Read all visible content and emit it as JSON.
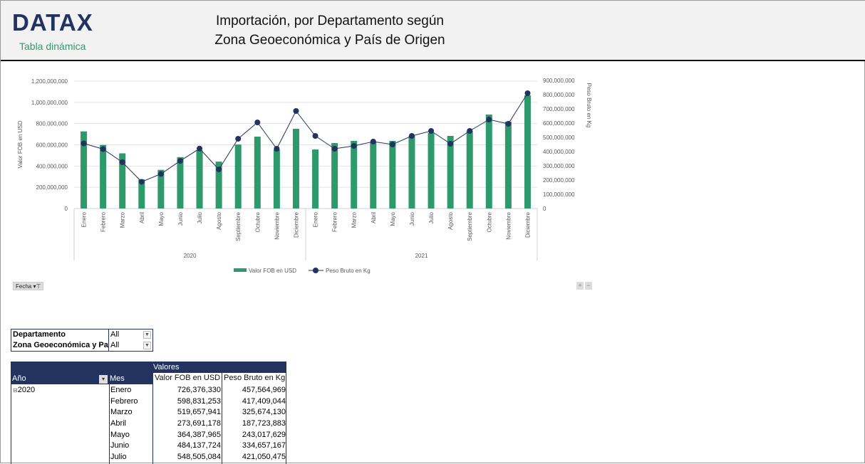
{
  "header": {
    "logo": "DATAX",
    "subtitle": "Tabla dinámica",
    "title_line1": "Importación, por Departamento según",
    "title_line2": "Zona Geoeconómica y País de Origen"
  },
  "chart_data": {
    "type": "bar+line",
    "categories": [
      "Enero",
      "Febrero",
      "Marzo",
      "Abril",
      "Mayo",
      "Junio",
      "Julio",
      "Agosto",
      "Septiembre",
      "Octubre",
      "Noviembre",
      "Diciembre",
      "Enero",
      "Febrero",
      "Marzo",
      "Abril",
      "Mayo",
      "Junio",
      "Julio",
      "Agosto",
      "Septiembre",
      "Octubre",
      "Noviembre",
      "Diciembre"
    ],
    "groups": [
      "2020",
      "2021"
    ],
    "series": [
      {
        "name": "Valor FOB en USD",
        "type": "bar",
        "axis": "left",
        "color": "#2e9a6b",
        "values": [
          726376330,
          598831253,
          519657941,
          273691178,
          364387965,
          484137724,
          548505084,
          442000000,
          603000000,
          677000000,
          556000000,
          751000000,
          556000000,
          617000000,
          637000000,
          624000000,
          637000000,
          684000000,
          711000000,
          684000000,
          731000000,
          885000000,
          818000000,
          1066000000
        ]
      },
      {
        "name": "Peso Bruto en Kg",
        "type": "line",
        "axis": "right",
        "color": "#23335f",
        "values": [
          457564969,
          417409044,
          325674130,
          187723883,
          243017629,
          334657167,
          421050475,
          275000000,
          490000000,
          605000000,
          420000000,
          685000000,
          510000000,
          420000000,
          440000000,
          470000000,
          450000000,
          510000000,
          545000000,
          455000000,
          545000000,
          625000000,
          595000000,
          810000000
        ]
      }
    ],
    "ylabel": "Valor FOB en USD",
    "ylabel_right": "Peso Bruto en Kg",
    "ylim": [
      0,
      1200000000
    ],
    "ylim_right": [
      0,
      900000000
    ],
    "yticks": [
      "0",
      "200,000,000",
      "400,000,000",
      "600,000,000",
      "800,000,000",
      "1,000,000,000",
      "1,200,000,000"
    ],
    "yticks_right": [
      "0",
      "100,000,000",
      "200,000,000",
      "300,000,000",
      "400,000,000",
      "500,000,000",
      "600,000,000",
      "700,000,000",
      "800,000,000",
      "900,000,000"
    ],
    "grid": true,
    "legend": "bottom"
  },
  "chart_controls": {
    "fecha": "Fecha",
    "plus": "+",
    "minus": "−"
  },
  "filters": [
    {
      "label": "Departamento",
      "value": "All"
    },
    {
      "label": "Zona Geoeconómica y País de Origen",
      "value": "All"
    }
  ],
  "pivot": {
    "valores": "Valores",
    "col_year": "Año",
    "col_month": "Mes",
    "col_fob": "Valor FOB en USD",
    "col_peso": "Peso Bruto en Kg",
    "year": "2020",
    "rows": [
      [
        "Enero",
        "726,376,330",
        "457,564,969"
      ],
      [
        "Febrero",
        "598,831,253",
        "417,409,044"
      ],
      [
        "Marzo",
        "519,657,941",
        "325,674,130"
      ],
      [
        "Abril",
        "273,691,178",
        "187,723,883"
      ],
      [
        "Mayo",
        "364,387,965",
        "243,017,629"
      ],
      [
        "Junio",
        "484,137,724",
        "334,657,167"
      ],
      [
        "Julio",
        "548,505,084",
        "421,050,475"
      ]
    ]
  }
}
